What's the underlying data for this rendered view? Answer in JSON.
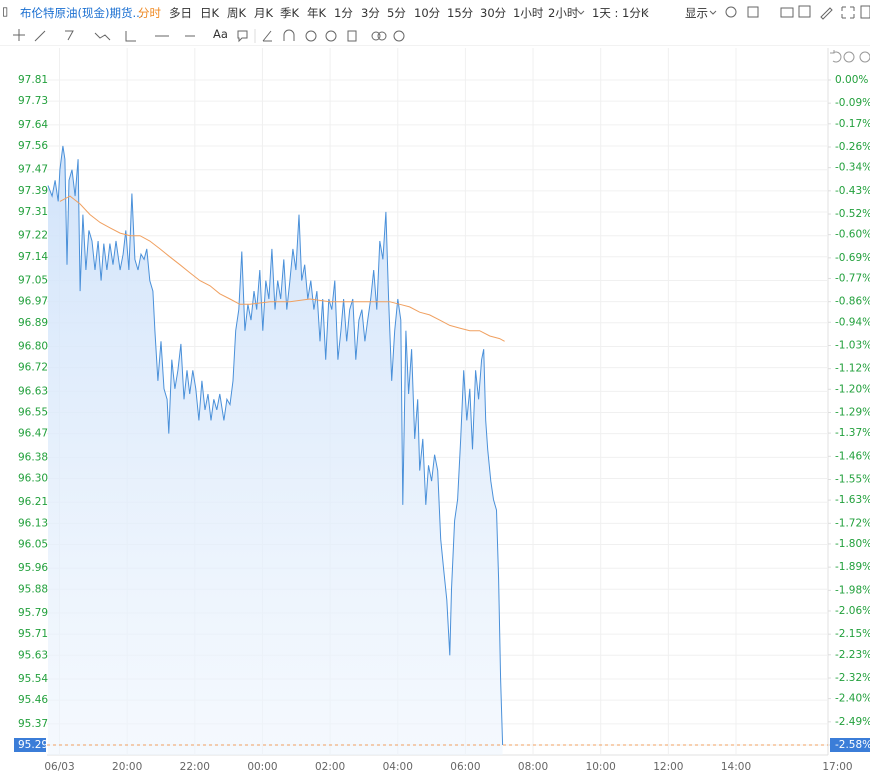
{
  "toolbar": {
    "symbol": "布伦特原油(现金)期货...",
    "periods": [
      "分时",
      "多日",
      "日K",
      "周K",
      "月K",
      "季K",
      "年K",
      "1分",
      "3分",
      "5分",
      "10分",
      "15分",
      "30分",
      "1小时",
      "2小时",
      "1天 : 1分K"
    ],
    "display": "显示",
    "text_tool": "Aa"
  },
  "chart_data": {
    "type": "line",
    "grid": true,
    "axis_label_color": "#22a03c",
    "xlim": [
      17.63,
      40.72
    ],
    "ylim": [
      95.29,
      97.81
    ],
    "y2lim": [
      -2.58,
      0
    ],
    "xticks": [
      {
        "value": 18,
        "label": "06/03"
      },
      {
        "value": 20,
        "label": "20:00"
      },
      {
        "value": 22,
        "label": "22:00"
      },
      {
        "value": 24,
        "label": "00:00"
      },
      {
        "value": 26,
        "label": "02:00"
      },
      {
        "value": 28,
        "label": "04:00"
      },
      {
        "value": 30,
        "label": "06:00"
      },
      {
        "value": 32,
        "label": "08:00"
      },
      {
        "value": 34,
        "label": "10:00"
      },
      {
        "value": 36,
        "label": "12:00"
      },
      {
        "value": 38,
        "label": "14:00"
      },
      {
        "value": 41,
        "label": "17:00"
      }
    ],
    "yticks": [
      97.81,
      97.73,
      97.64,
      97.56,
      97.47,
      97.39,
      97.31,
      97.22,
      97.14,
      97.05,
      96.97,
      96.89,
      {
        "value": 96.8,
        "label": "96.80"
      },
      96.72,
      96.63,
      96.55,
      96.47,
      96.38,
      {
        "value": 96.3,
        "label": "96.30"
      },
      96.21,
      96.13,
      96.05,
      95.96,
      95.88,
      95.79,
      95.71,
      95.63,
      95.54,
      95.46,
      95.37,
      95.29
    ],
    "y2ticks": [
      {
        "value": 0,
        "label": "0.00%"
      },
      {
        "value": -0.09,
        "label": "-0.09%"
      },
      {
        "value": -0.17,
        "label": "-0.17%"
      },
      {
        "value": -0.26,
        "label": "-0.26%"
      },
      {
        "value": -0.34,
        "label": "-0.34%"
      },
      {
        "value": -0.43,
        "label": "-0.43%"
      },
      {
        "value": -0.52,
        "label": "-0.52%"
      },
      {
        "value": -0.6,
        "label": "-0.60%"
      },
      {
        "value": -0.69,
        "label": "-0.69%"
      },
      {
        "value": -0.77,
        "label": "-0.77%"
      },
      {
        "value": -0.86,
        "label": "-0.86%"
      },
      {
        "value": -0.94,
        "label": "-0.94%"
      },
      {
        "value": -1.03,
        "label": "-1.03%"
      },
      {
        "value": -1.12,
        "label": "-1.12%"
      },
      {
        "value": -1.2,
        "label": "-1.20%"
      },
      {
        "value": -1.29,
        "label": "-1.29%"
      },
      {
        "value": -1.37,
        "label": "-1.37%"
      },
      {
        "value": -1.46,
        "label": "-1.46%"
      },
      {
        "value": -1.55,
        "label": "-1.55%"
      },
      {
        "value": -1.63,
        "label": "-1.63%"
      },
      {
        "value": -1.72,
        "label": "-1.72%"
      },
      {
        "value": -1.8,
        "label": "-1.80%"
      },
      {
        "value": -1.89,
        "label": "-1.89%"
      },
      {
        "value": -1.98,
        "label": "-1.98%"
      },
      {
        "value": -2.06,
        "label": "-2.06%"
      },
      {
        "value": -2.15,
        "label": "-2.15%"
      },
      {
        "value": -2.23,
        "label": "-2.23%"
      },
      {
        "value": -2.32,
        "label": "-2.32%"
      },
      {
        "value": -2.4,
        "label": "-2.40%"
      },
      {
        "value": -2.49,
        "label": "-2.49%"
      },
      {
        "value": -2.58,
        "label": "-2.58%"
      }
    ],
    "series": [
      {
        "color": "#4a90d9",
        "fill": true,
        "x": [
          17.66,
          17.78,
          17.87,
          17.96,
          18.01,
          18.1,
          18.16,
          18.22,
          18.28,
          18.37,
          18.46,
          18.55,
          18.61,
          18.69,
          18.78,
          18.87,
          18.96,
          19.05,
          19.14,
          19.23,
          19.31,
          19.4,
          19.49,
          19.58,
          19.67,
          19.79,
          19.88,
          19.96,
          20.05,
          20.14,
          20.23,
          20.32,
          20.41,
          20.5,
          20.58,
          20.67,
          20.76,
          20.82,
          20.91,
          21.0,
          21.09,
          21.18,
          21.23,
          21.32,
          21.41,
          21.5,
          21.59,
          21.68,
          21.77,
          21.85,
          21.94,
          22.03,
          22.12,
          22.21,
          22.3,
          22.39,
          22.48,
          22.56,
          22.65,
          22.74,
          22.86,
          22.95,
          23.04,
          23.13,
          23.21,
          23.3,
          23.39,
          23.48,
          23.57,
          23.66,
          23.75,
          23.83,
          23.92,
          24.01,
          24.1,
          24.19,
          24.28,
          24.37,
          24.45,
          24.54,
          24.63,
          24.72,
          24.81,
          24.9,
          24.99,
          25.08,
          25.16,
          25.25,
          25.34,
          25.43,
          25.52,
          25.61,
          25.7,
          25.78,
          25.87,
          25.96,
          26.05,
          26.14,
          26.23,
          26.32,
          26.4,
          26.49,
          26.58,
          26.67,
          26.76,
          26.85,
          26.94,
          27.03,
          27.11,
          27.2,
          27.29,
          27.38,
          27.47,
          27.56,
          27.65,
          27.73,
          27.82,
          27.91,
          28.0,
          28.09,
          28.15,
          28.24,
          28.32,
          28.41,
          28.5,
          28.59,
          28.65,
          28.74,
          28.83,
          28.91,
          29.0,
          29.09,
          29.18,
          29.27,
          29.36,
          29.45,
          29.54,
          29.59,
          29.68,
          29.77,
          29.86,
          29.95,
          30.04,
          30.13,
          30.21,
          30.3,
          30.39,
          30.48,
          30.54,
          30.6,
          30.66,
          30.75,
          30.83,
          30.92,
          30.98,
          31.04,
          31.1
        ],
        "values": [
          97.41,
          97.37,
          97.43,
          97.35,
          97.47,
          97.56,
          97.51,
          97.11,
          97.43,
          97.47,
          97.37,
          97.51,
          97.01,
          97.3,
          97.09,
          97.24,
          97.2,
          97.09,
          97.2,
          97.05,
          97.19,
          97.09,
          97.19,
          97.11,
          97.2,
          97.09,
          97.15,
          97.24,
          97.09,
          97.38,
          97.13,
          97.09,
          97.15,
          97.13,
          97.17,
          97.05,
          97.01,
          96.86,
          96.67,
          96.82,
          96.64,
          96.6,
          96.47,
          96.75,
          96.64,
          96.71,
          96.81,
          96.6,
          96.71,
          96.62,
          96.71,
          96.64,
          96.52,
          96.67,
          96.56,
          96.62,
          96.52,
          96.6,
          96.56,
          96.62,
          96.52,
          96.6,
          96.58,
          96.67,
          96.86,
          96.94,
          97.16,
          96.86,
          96.96,
          96.9,
          97.01,
          96.94,
          97.09,
          96.86,
          97.05,
          96.98,
          97.17,
          96.94,
          97.05,
          96.98,
          97.13,
          96.94,
          97.05,
          97.17,
          97.09,
          97.3,
          97.05,
          97.11,
          96.98,
          97.05,
          96.94,
          97.01,
          96.82,
          96.98,
          96.75,
          96.98,
          96.94,
          97.05,
          96.75,
          96.86,
          96.98,
          96.82,
          96.94,
          96.98,
          96.75,
          96.9,
          96.94,
          96.82,
          96.9,
          96.98,
          97.09,
          96.94,
          97.2,
          97.13,
          97.31,
          96.98,
          96.67,
          96.86,
          96.98,
          96.9,
          96.2,
          96.86,
          96.62,
          96.79,
          96.45,
          96.6,
          96.33,
          96.45,
          96.2,
          96.35,
          96.29,
          96.39,
          96.33,
          96.07,
          95.95,
          95.84,
          95.63,
          95.88,
          96.14,
          96.22,
          96.45,
          96.71,
          96.52,
          96.64,
          96.41,
          96.71,
          96.6,
          96.75,
          96.79,
          96.52,
          96.41,
          96.29,
          96.22,
          96.18,
          95.92,
          95.54,
          95.29
        ]
      },
      {
        "color": "#f0a060",
        "fill": false,
        "x": [
          18.01,
          18.31,
          18.61,
          18.9,
          19.2,
          19.49,
          19.79,
          20.08,
          20.38,
          20.67,
          20.97,
          21.26,
          21.56,
          21.85,
          22.15,
          22.45,
          22.74,
          23.04,
          23.33,
          23.63,
          24.22,
          24.81,
          25.4,
          25.99,
          26.58,
          27.17,
          27.76,
          28.06,
          28.35,
          28.65,
          28.94,
          29.24,
          29.54,
          29.83,
          30.13,
          30.42,
          30.72,
          31.01,
          31.16
        ],
        "values": [
          97.35,
          97.37,
          97.34,
          97.3,
          97.27,
          97.25,
          97.23,
          97.22,
          97.22,
          97.2,
          97.17,
          97.14,
          97.11,
          97.08,
          97.05,
          97.03,
          97.0,
          96.98,
          96.96,
          96.96,
          96.97,
          96.97,
          96.98,
          96.97,
          96.97,
          96.97,
          96.97,
          96.96,
          96.95,
          96.93,
          96.92,
          96.9,
          96.88,
          96.87,
          96.86,
          96.86,
          96.84,
          96.83,
          96.82
        ]
      }
    ]
  }
}
